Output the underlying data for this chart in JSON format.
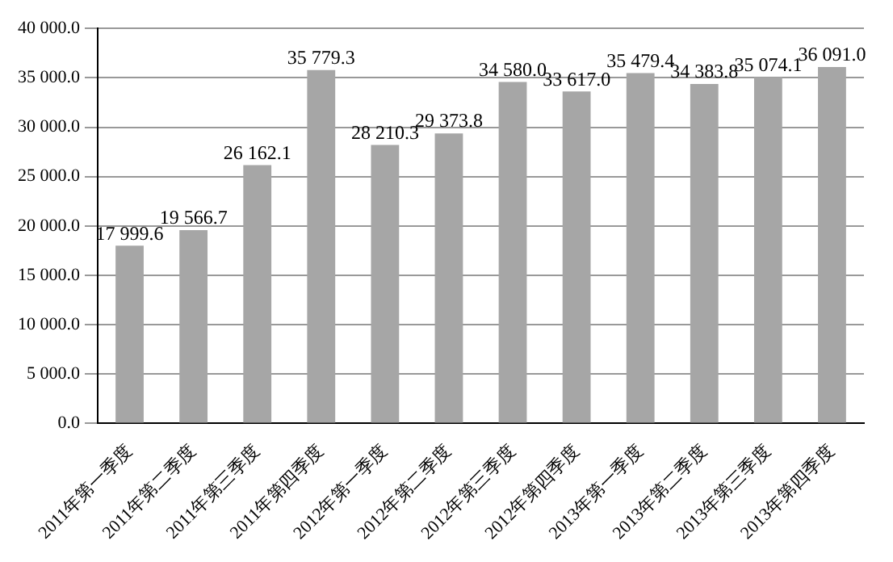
{
  "chart_data": {
    "type": "bar",
    "categories": [
      "2011年第一季度",
      "2011年第二季度",
      "2011年第三季度",
      "2011年第四季度",
      "2012年第一季度",
      "2012年第二季度",
      "2012年第三季度",
      "2012年第四季度",
      "2013年第一季度",
      "2013年第二季度",
      "2013年第三季度",
      "2013年第四季度"
    ],
    "values": [
      17999.6,
      19566.7,
      26162.1,
      35779.3,
      28210.3,
      29373.8,
      34580.0,
      33617.0,
      35479.4,
      34383.8,
      35074.1,
      36091.0
    ],
    "value_labels": [
      "17 999.6",
      "19 566.7",
      "26 162.1",
      "35 779.3",
      "28 210.3",
      "29 373.8",
      "34 580.0",
      "33 617.0",
      "35 479.4",
      "34 383.8",
      "35 074.1",
      "36 091.0"
    ],
    "color": "#a6a6a6",
    "ylim": [
      0,
      40000
    ],
    "yticks": [
      {
        "value": 0,
        "label": "0.0"
      },
      {
        "value": 5000,
        "label": "5 000.0"
      },
      {
        "value": 10000,
        "label": "10 000.0"
      },
      {
        "value": 15000,
        "label": "15 000.0"
      },
      {
        "value": 20000,
        "label": "20 000.0"
      },
      {
        "value": 25000,
        "label": "25 000.0"
      },
      {
        "value": 30000,
        "label": "30 000.0"
      },
      {
        "value": 35000,
        "label": "35 000.0"
      },
      {
        "value": 40000,
        "label": "40 000.0"
      }
    ],
    "grid": "y"
  }
}
